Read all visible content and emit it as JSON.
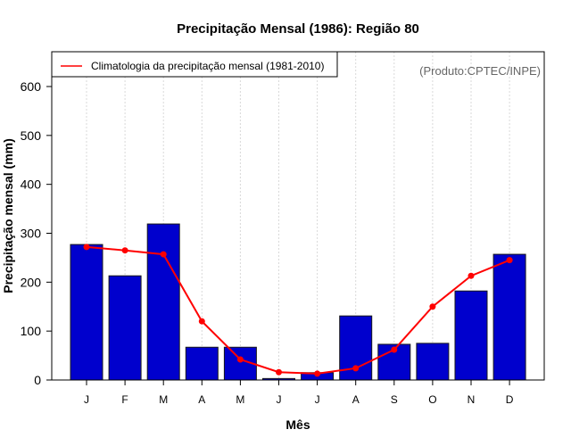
{
  "chart_data": {
    "type": "bar",
    "title": "Precipitação Mensal (1986): Região 80",
    "xlabel": "Mês",
    "ylabel": "Precipitação mensal (mm)",
    "ylim": [
      0,
      670
    ],
    "yticks": [
      0,
      100,
      200,
      300,
      400,
      500,
      600
    ],
    "categories": [
      "J",
      "F",
      "M",
      "A",
      "M",
      "J",
      "J",
      "A",
      "S",
      "O",
      "N",
      "D"
    ],
    "grid": "vertical dotted",
    "series": [
      {
        "name": "Precipitação mensal (1986)",
        "kind": "bar",
        "color": "#0000cd",
        "values": [
          277,
          213,
          319,
          67,
          67,
          3,
          15,
          131,
          73,
          75,
          182,
          257
        ]
      },
      {
        "name": "Climatologia da precipitação mensal (1981-2010)",
        "kind": "line",
        "color": "#ff0000",
        "values": [
          272,
          265,
          257,
          120,
          42,
          16,
          13,
          24,
          62,
          150,
          213,
          245
        ]
      }
    ],
    "legend": {
      "position": "top-left",
      "entries": [
        "Climatologia da precipitação mensal (1981-2010)"
      ]
    },
    "annotation": "(Produto:CPTEC/INPE)"
  }
}
